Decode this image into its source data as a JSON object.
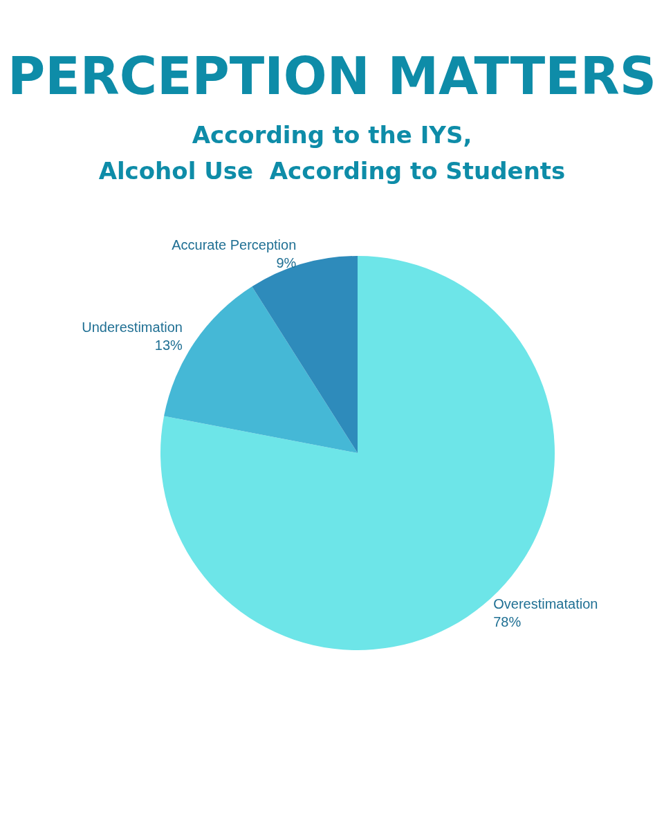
{
  "chart_data": {
    "type": "pie",
    "title": "PERCEPTION MATTERS",
    "subtitle": "According to the IYS,\nAlcohol Use  According to Students",
    "categories": [
      "Overestimatation",
      "Underestimation",
      "Accurate Perception"
    ],
    "values": [
      78,
      13,
      9
    ],
    "value_labels": [
      "78%",
      "13%",
      "9%"
    ],
    "colors": [
      "#6de5e8",
      "#45b8d6",
      "#2e8bbb"
    ],
    "legend": false
  }
}
